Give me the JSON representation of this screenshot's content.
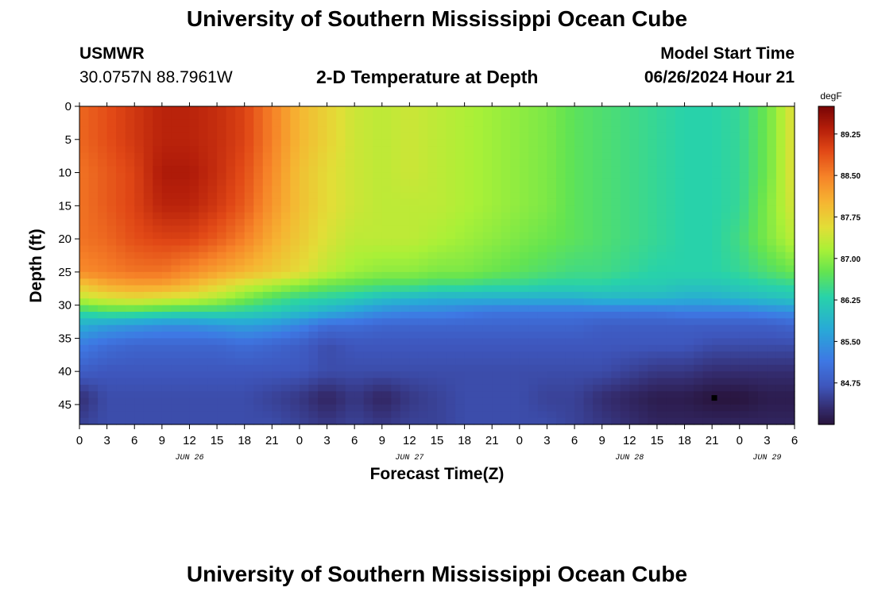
{
  "header": {
    "title": "University of Southern Mississippi Ocean Cube",
    "station_id": "USMWR",
    "station_coords": "30.0757N  88.7961W",
    "plot_title": "2-D Temperature at Depth",
    "start_label": "Model Start Time",
    "start_value": "06/26/2024 Hour 21"
  },
  "footer": {
    "title": "University of Southern Mississippi Ocean Cube"
  },
  "chart_data": {
    "type": "heatmap",
    "title": "2-D Temperature at Depth",
    "xlabel": "Forecast Time(Z)",
    "ylabel": "Depth (ft)",
    "x_range_hours": [
      0,
      78
    ],
    "y_range_ft": [
      0,
      48
    ],
    "y_reversed": true,
    "x_tick_labels": [
      "0",
      "3",
      "6",
      "9",
      "12",
      "15",
      "18",
      "21",
      "0",
      "3",
      "6",
      "9",
      "12",
      "15",
      "18",
      "21",
      "0",
      "3",
      "6",
      "9",
      "12",
      "15",
      "18",
      "21",
      "0",
      "3",
      "6"
    ],
    "x_date_labels": [
      {
        "label": "JUN 26",
        "hour": 12
      },
      {
        "label": "JUN 27",
        "hour": 36
      },
      {
        "label": "JUN 28",
        "hour": 60
      },
      {
        "label": "JUN 29",
        "hour": 75
      }
    ],
    "y_ticks": [
      0,
      5,
      10,
      15,
      20,
      25,
      30,
      35,
      40,
      45
    ],
    "colorbar": {
      "unit": "degF",
      "min": 84.0,
      "max": 89.75,
      "tick_values": [
        84.75,
        85.5,
        86.25,
        87.0,
        87.75,
        88.5,
        89.25
      ],
      "tick_labels": [
        "84.75",
        "85.50",
        "86.25",
        "87.00",
        "87.75",
        "88.50",
        "89.25"
      ]
    },
    "marker": {
      "hour": 69.25,
      "depth_ft": 44
    },
    "grid_hours": [
      0,
      3,
      6,
      9,
      12,
      15,
      18,
      21,
      24,
      27,
      30,
      33,
      36,
      39,
      42,
      45,
      48,
      51,
      54,
      57,
      60,
      63,
      66,
      69,
      72,
      75,
      78
    ],
    "grid_depths_ft": [
      0,
      5,
      10,
      15,
      20,
      25,
      27,
      29,
      31,
      33,
      36,
      40,
      44,
      48
    ],
    "temperature_degF": [
      [
        88.7,
        88.9,
        89.1,
        89.3,
        89.3,
        89.2,
        89.0,
        88.5,
        88.0,
        87.7,
        87.4,
        87.3,
        87.4,
        87.3,
        87.2,
        87.1,
        87.0,
        86.9,
        86.7,
        86.6,
        86.5,
        86.4,
        86.3,
        86.3,
        86.4,
        86.8,
        87.6
      ],
      [
        88.7,
        88.9,
        89.1,
        89.3,
        89.3,
        89.2,
        89.0,
        88.5,
        88.0,
        87.7,
        87.4,
        87.3,
        87.4,
        87.3,
        87.2,
        87.1,
        87.0,
        86.9,
        86.7,
        86.6,
        86.5,
        86.4,
        86.3,
        86.3,
        86.4,
        86.8,
        87.6
      ],
      [
        88.6,
        88.8,
        89.0,
        89.4,
        89.4,
        89.2,
        88.9,
        88.4,
        87.9,
        87.6,
        87.4,
        87.3,
        87.4,
        87.3,
        87.2,
        87.1,
        87.0,
        86.9,
        86.7,
        86.6,
        86.5,
        86.4,
        86.3,
        86.3,
        86.4,
        86.8,
        87.6
      ],
      [
        88.6,
        88.8,
        89.0,
        89.3,
        89.3,
        89.1,
        88.8,
        88.3,
        87.9,
        87.6,
        87.4,
        87.3,
        87.3,
        87.3,
        87.2,
        87.1,
        87.0,
        86.9,
        86.7,
        86.6,
        86.5,
        86.4,
        86.3,
        86.3,
        86.4,
        86.9,
        87.5
      ],
      [
        88.6,
        88.7,
        88.9,
        89.0,
        89.0,
        88.8,
        88.5,
        88.1,
        87.8,
        87.5,
        87.3,
        87.3,
        87.3,
        87.2,
        87.1,
        87.0,
        86.9,
        86.8,
        86.7,
        86.6,
        86.5,
        86.4,
        86.3,
        86.3,
        86.5,
        86.9,
        87.3
      ],
      [
        88.4,
        88.5,
        88.6,
        88.6,
        88.4,
        88.2,
        88.0,
        87.8,
        87.6,
        87.3,
        87.1,
        87.0,
        87.0,
        86.9,
        86.9,
        86.8,
        86.7,
        86.6,
        86.5,
        86.5,
        86.4,
        86.3,
        86.3,
        86.3,
        86.4,
        86.6,
        86.8
      ],
      [
        87.8,
        88.1,
        88.2,
        88.2,
        88.0,
        87.7,
        87.4,
        87.2,
        87.0,
        86.8,
        86.7,
        86.6,
        86.6,
        86.5,
        86.5,
        86.4,
        86.4,
        86.3,
        86.3,
        86.3,
        86.2,
        86.2,
        86.1,
        86.1,
        86.2,
        86.3,
        86.4
      ],
      [
        87.3,
        87.5,
        87.6,
        87.5,
        87.4,
        87.2,
        86.9,
        86.6,
        86.4,
        86.3,
        86.2,
        86.0,
        85.9,
        85.8,
        85.8,
        85.8,
        85.8,
        85.8,
        85.8,
        85.9,
        85.9,
        85.9,
        85.8,
        85.8,
        85.9,
        86.0,
        86.1
      ],
      [
        86.4,
        86.6,
        86.6,
        86.5,
        86.4,
        86.4,
        86.3,
        86.2,
        86.0,
        85.8,
        85.6,
        85.4,
        85.3,
        85.3,
        85.2,
        85.1,
        85.1,
        85.1,
        85.1,
        85.1,
        85.1,
        85.1,
        85.2,
        85.2,
        85.2,
        85.3,
        85.4
      ],
      [
        85.8,
        85.6,
        85.5,
        85.4,
        85.4,
        85.5,
        85.6,
        85.5,
        85.3,
        85.0,
        85.0,
        84.9,
        84.9,
        84.9,
        84.9,
        84.9,
        84.9,
        84.9,
        84.9,
        84.8,
        84.8,
        84.8,
        84.8,
        84.8,
        84.8,
        84.8,
        84.9
      ],
      [
        85.2,
        85.0,
        84.9,
        84.9,
        84.9,
        84.9,
        85.0,
        84.9,
        84.8,
        84.6,
        84.7,
        84.7,
        84.7,
        84.7,
        84.7,
        84.7,
        84.7,
        84.7,
        84.7,
        84.7,
        84.7,
        84.7,
        84.7,
        84.6,
        84.6,
        84.6,
        84.6
      ],
      [
        84.8,
        84.7,
        84.7,
        84.7,
        84.7,
        84.7,
        84.7,
        84.7,
        84.7,
        84.6,
        84.6,
        84.6,
        84.6,
        84.6,
        84.6,
        84.6,
        84.6,
        84.6,
        84.6,
        84.6,
        84.5,
        84.4,
        84.4,
        84.3,
        84.3,
        84.3,
        84.3
      ],
      [
        84.3,
        84.6,
        84.6,
        84.6,
        84.6,
        84.6,
        84.6,
        84.5,
        84.4,
        84.2,
        84.4,
        84.2,
        84.4,
        84.5,
        84.6,
        84.6,
        84.6,
        84.5,
        84.5,
        84.3,
        84.2,
        84.1,
        84.1,
        84.0,
        84.0,
        84.1,
        84.1
      ],
      [
        84.5,
        84.6,
        84.6,
        84.6,
        84.6,
        84.6,
        84.6,
        84.6,
        84.5,
        84.4,
        84.5,
        84.4,
        84.5,
        84.5,
        84.6,
        84.6,
        84.6,
        84.6,
        84.5,
        84.4,
        84.3,
        84.2,
        84.2,
        84.2,
        84.2,
        84.2,
        84.2
      ]
    ]
  }
}
